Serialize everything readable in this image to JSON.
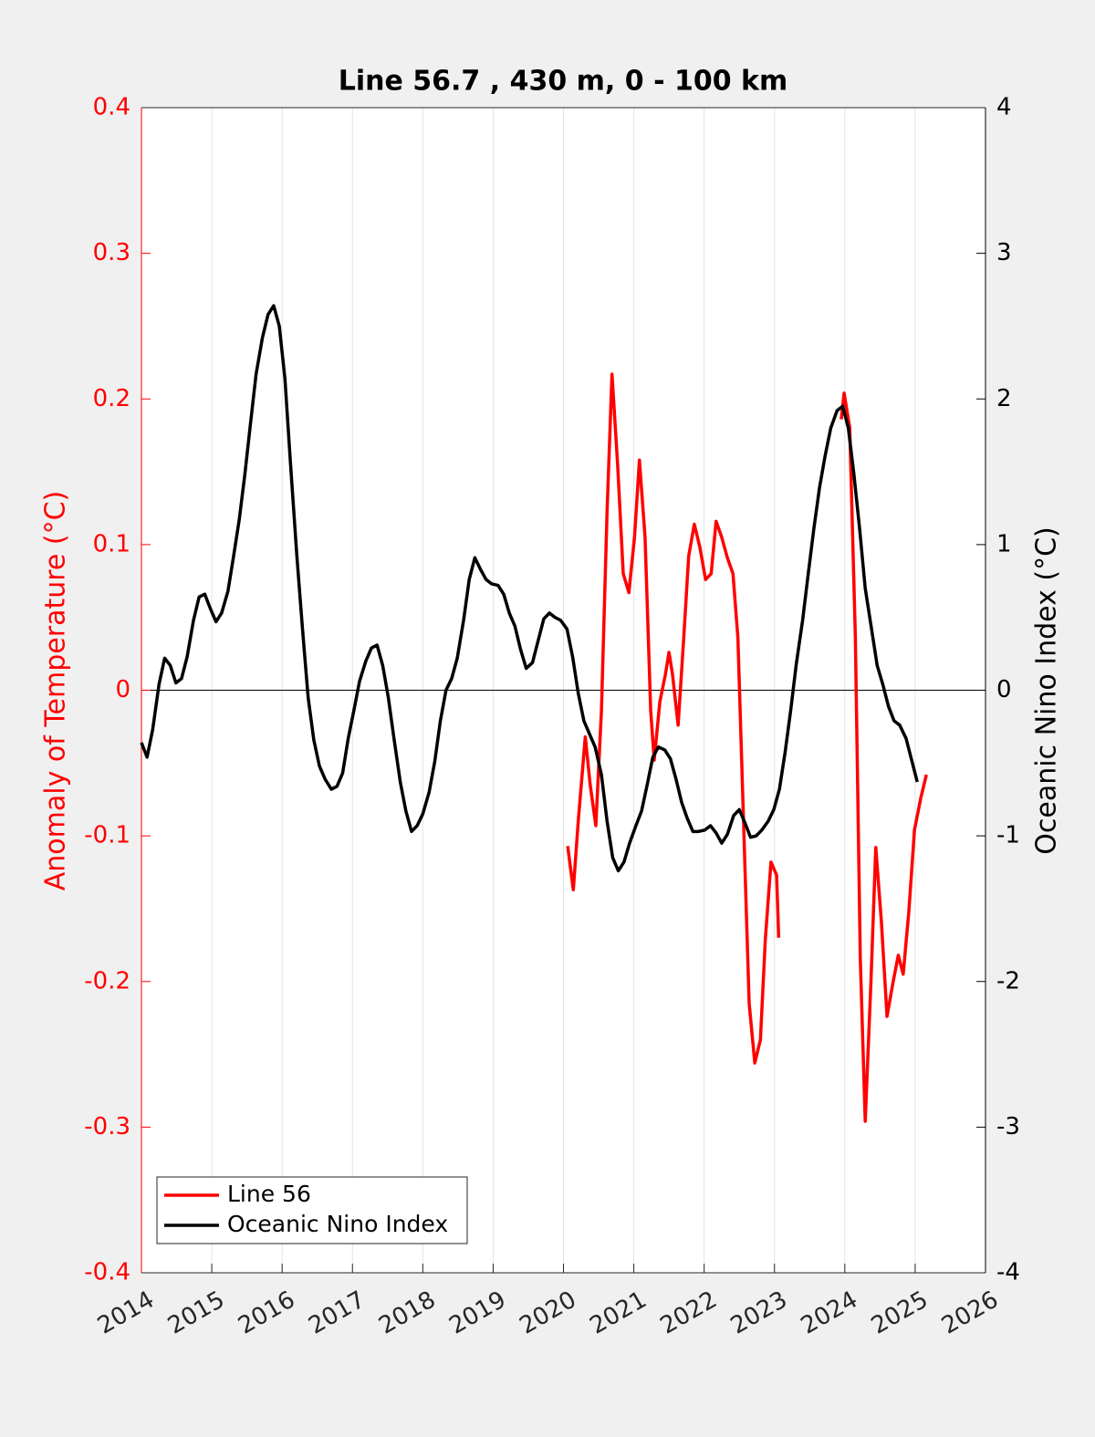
{
  "chart_data": {
    "type": "line",
    "title": "Line 56.7 , 430 m, 0 - 100 km",
    "ylabel": "Anomaly of Temperature (°C)",
    "y2label": "Oceanic Nino Index (°C)",
    "xlim": [
      2014,
      2026
    ],
    "xticks": [
      2014,
      2015,
      2016,
      2017,
      2018,
      2019,
      2020,
      2021,
      2022,
      2023,
      2024,
      2025,
      2026
    ],
    "ylim": [
      -0.4,
      0.4
    ],
    "yticks": [
      -0.4,
      -0.3,
      -0.2,
      -0.1,
      0,
      0.1,
      0.2,
      0.3,
      0.4
    ],
    "y2lim": [
      -4,
      4
    ],
    "y2ticks": [
      -4,
      -3,
      -2,
      -1,
      0,
      1,
      2,
      3,
      4
    ],
    "ycolor": "#ff0000",
    "y2color": "#000000",
    "grid": "x",
    "legend": "lower left",
    "series": [
      {
        "name": "Line 56",
        "color": "#ff0000",
        "axis": "y",
        "x": [
          2020.06,
          2020.14,
          2020.21,
          2020.31,
          2020.38,
          2020.46,
          2020.54,
          2020.62,
          2020.69,
          2020.77,
          2020.85,
          2020.93,
          2021.01,
          2021.08,
          2021.16,
          2021.24,
          2021.29,
          2021.37,
          2021.45,
          2021.5,
          2021.55,
          2021.63,
          2021.71,
          2021.78,
          2021.86,
          2021.94,
          2022.02,
          2022.1,
          2022.17,
          2022.25,
          2022.33,
          2022.41,
          2022.48,
          2022.56,
          2022.64,
          2022.72,
          2022.8,
          2022.87,
          2022.95,
          2023.03,
          2023.06,
          2023.5,
          2023.95,
          2023.99,
          2024.07,
          2024.15,
          2024.22,
          2024.29,
          2024.37,
          2024.44,
          2024.52,
          2024.6,
          2024.68,
          2024.76,
          2024.83,
          2024.91,
          2024.99,
          2025.08,
          2025.16
        ],
        "values": [
          -0.107,
          -0.137,
          -0.09,
          -0.032,
          -0.065,
          -0.093,
          -0.014,
          0.123,
          0.217,
          0.155,
          0.08,
          0.067,
          0.105,
          0.158,
          0.105,
          -0.014,
          -0.048,
          -0.008,
          0.011,
          0.026,
          0.011,
          -0.024,
          0.036,
          0.092,
          0.114,
          0.098,
          0.076,
          0.08,
          0.116,
          0.105,
          0.091,
          0.08,
          0.036,
          -0.09,
          -0.215,
          -0.256,
          -0.24,
          -0.171,
          -0.118,
          -0.127,
          -0.17,
          null,
          0.186,
          0.204,
          0.18,
          0.036,
          -0.184,
          -0.296,
          -0.202,
          -0.108,
          -0.159,
          -0.224,
          -0.202,
          -0.182,
          -0.195,
          -0.152,
          -0.096,
          -0.074,
          -0.058
        ]
      },
      {
        "name": "Oceanic Nino Index",
        "color": "#000000",
        "axis": "y2",
        "x": [
          2014.0,
          2014.08,
          2014.16,
          2014.25,
          2014.33,
          2014.41,
          2014.49,
          2014.57,
          2014.65,
          2014.74,
          2014.82,
          2014.9,
          2014.98,
          2015.06,
          2015.14,
          2015.23,
          2015.31,
          2015.39,
          2015.47,
          2015.55,
          2015.63,
          2015.72,
          2015.8,
          2015.88,
          2015.96,
          2016.04,
          2016.12,
          2016.21,
          2016.29,
          2016.37,
          2016.45,
          2016.53,
          2016.61,
          2016.7,
          2016.78,
          2016.86,
          2016.94,
          2017.02,
          2017.1,
          2017.19,
          2017.27,
          2017.35,
          2017.43,
          2017.51,
          2017.59,
          2017.68,
          2017.76,
          2017.84,
          2017.92,
          2018.0,
          2018.09,
          2018.17,
          2018.25,
          2018.33,
          2018.41,
          2018.49,
          2018.58,
          2018.66,
          2018.74,
          2018.82,
          2018.9,
          2018.98,
          2019.07,
          2019.15,
          2019.23,
          2019.31,
          2019.39,
          2019.47,
          2019.56,
          2019.64,
          2019.72,
          2019.8,
          2019.88,
          2019.96,
          2020.05,
          2020.13,
          2020.21,
          2020.29,
          2020.37,
          2020.45,
          2020.54,
          2020.62,
          2020.7,
          2020.78,
          2020.86,
          2020.94,
          2021.03,
          2021.11,
          2021.19,
          2021.27,
          2021.35,
          2021.44,
          2021.52,
          2021.6,
          2021.68,
          2021.76,
          2021.84,
          2021.92,
          2022.01,
          2022.09,
          2022.17,
          2022.25,
          2022.33,
          2022.42,
          2022.5,
          2022.58,
          2022.66,
          2022.74,
          2022.82,
          2022.91,
          2022.99,
          2023.07,
          2023.15,
          2023.23,
          2023.31,
          2023.4,
          2023.48,
          2023.56,
          2023.64,
          2023.72,
          2023.8,
          2023.89,
          2023.97,
          2024.05,
          2024.13,
          2024.21,
          2024.29,
          2024.38,
          2024.46,
          2024.54,
          2024.62,
          2024.7,
          2024.78,
          2024.87,
          2024.95,
          2025.03
        ],
        "values": [
          -0.36,
          -0.46,
          -0.27,
          0.04,
          0.22,
          0.17,
          0.05,
          0.08,
          0.23,
          0.48,
          0.64,
          0.66,
          0.56,
          0.47,
          0.53,
          0.68,
          0.92,
          1.17,
          1.48,
          1.83,
          2.17,
          2.42,
          2.58,
          2.64,
          2.5,
          2.14,
          1.55,
          0.92,
          0.42,
          -0.05,
          -0.34,
          -0.52,
          -0.61,
          -0.68,
          -0.66,
          -0.57,
          -0.33,
          -0.14,
          0.06,
          0.2,
          0.29,
          0.31,
          0.17,
          -0.05,
          -0.33,
          -0.63,
          -0.83,
          -0.97,
          -0.93,
          -0.85,
          -0.7,
          -0.49,
          -0.21,
          0.0,
          0.08,
          0.22,
          0.48,
          0.76,
          0.91,
          0.83,
          0.76,
          0.73,
          0.72,
          0.66,
          0.53,
          0.44,
          0.28,
          0.15,
          0.19,
          0.34,
          0.49,
          0.53,
          0.5,
          0.48,
          0.42,
          0.23,
          -0.02,
          -0.21,
          -0.3,
          -0.39,
          -0.58,
          -0.9,
          -1.15,
          -1.24,
          -1.18,
          -1.05,
          -0.93,
          -0.83,
          -0.65,
          -0.46,
          -0.39,
          -0.41,
          -0.47,
          -0.61,
          -0.77,
          -0.88,
          -0.97,
          -0.97,
          -0.96,
          -0.93,
          -0.98,
          -1.05,
          -0.99,
          -0.86,
          -0.82,
          -0.91,
          -1.01,
          -1.0,
          -0.96,
          -0.9,
          -0.82,
          -0.68,
          -0.43,
          -0.14,
          0.18,
          0.48,
          0.8,
          1.11,
          1.39,
          1.61,
          1.8,
          1.92,
          1.95,
          1.8,
          1.48,
          1.11,
          0.7,
          0.42,
          0.17,
          0.04,
          -0.11,
          -0.21,
          -0.24,
          -0.33,
          -0.48,
          -0.63
        ]
      }
    ]
  }
}
